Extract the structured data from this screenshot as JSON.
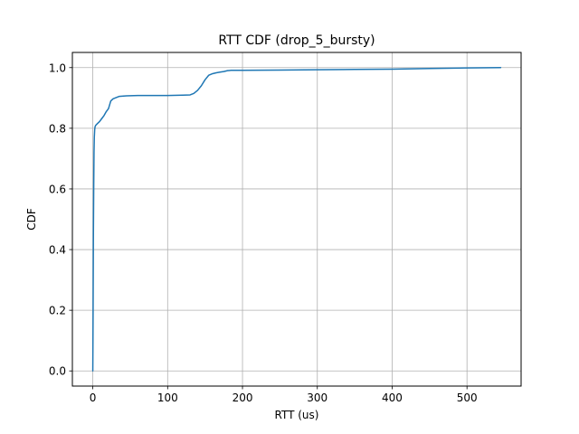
{
  "chart_data": {
    "type": "line",
    "title": "RTT CDF (drop_5_bursty)",
    "xlabel": "RTT (us)",
    "ylabel": "CDF",
    "xlim": [
      -27.3,
      572.3
    ],
    "ylim": [
      -0.05,
      1.05
    ],
    "xticks": [
      0,
      100,
      200,
      300,
      400,
      500
    ],
    "xtick_labels": [
      "0",
      "100",
      "200",
      "300",
      "400",
      "500"
    ],
    "yticks": [
      0.0,
      0.2,
      0.4,
      0.6,
      0.8,
      1.0
    ],
    "ytick_labels": [
      "0.0",
      "0.2",
      "0.4",
      "0.6",
      "0.8",
      "1.0"
    ],
    "grid": true,
    "series": [
      {
        "color": "#1f77b4",
        "x": [
          0.0,
          0.4,
          0.8,
          1.2,
          1.6,
          2.0,
          2.5,
          3.0,
          4.0,
          6.0,
          9.0,
          12.0,
          15.0,
          18.0,
          21.0,
          24.0,
          27.0,
          30.0,
          35.0,
          45.0,
          60.0,
          80.0,
          100.0,
          120.0,
          130.0,
          135.0,
          140.0,
          145.0,
          150.0,
          155.0,
          160.0,
          165.0,
          170.0,
          175.0,
          180.0,
          185.0,
          200.0,
          250.0,
          300.0,
          350.0,
          400.0,
          450.0,
          500.0,
          545.0
        ],
        "y": [
          0.0,
          0.2,
          0.45,
          0.6,
          0.72,
          0.77,
          0.795,
          0.805,
          0.81,
          0.815,
          0.822,
          0.832,
          0.842,
          0.855,
          0.865,
          0.89,
          0.897,
          0.9,
          0.905,
          0.907,
          0.908,
          0.908,
          0.908,
          0.909,
          0.91,
          0.915,
          0.925,
          0.94,
          0.96,
          0.975,
          0.98,
          0.983,
          0.985,
          0.987,
          0.99,
          0.991,
          0.991,
          0.992,
          0.993,
          0.994,
          0.995,
          0.997,
          0.999,
          1.0
        ]
      }
    ]
  }
}
